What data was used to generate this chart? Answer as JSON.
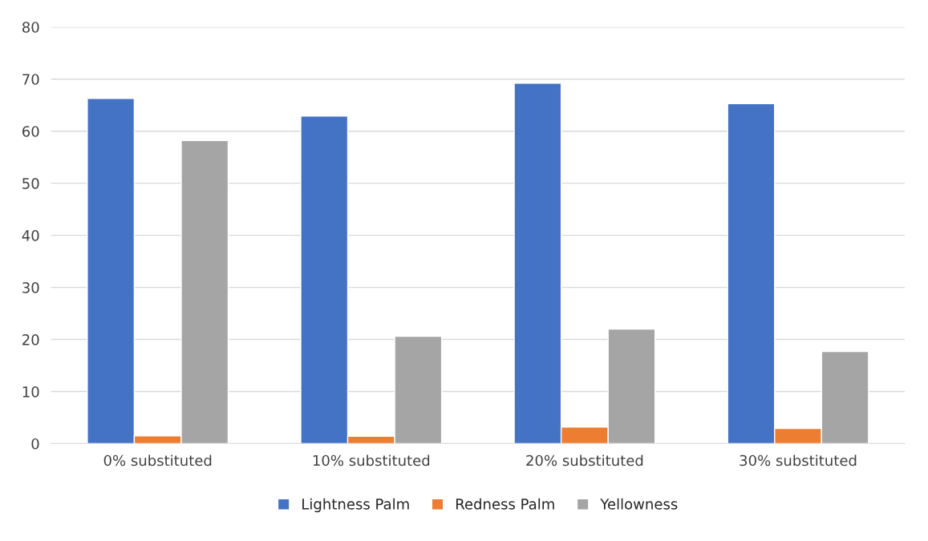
{
  "chart_data": {
    "type": "bar",
    "categories": [
      "0% substituted",
      "10% substituted",
      "20% substituted",
      "30% substituted"
    ],
    "series": [
      {
        "name": "Lightness Palm",
        "color": "#4472c4",
        "values": [
          66.3,
          62.9,
          69.2,
          65.3
        ]
      },
      {
        "name": "Redness Palm",
        "color": "#ed7d31",
        "values": [
          1.5,
          1.4,
          3.2,
          2.9
        ]
      },
      {
        "name": "Yellowness",
        "color": "#a5a5a5",
        "values": [
          58.2,
          20.6,
          22.0,
          17.7
        ]
      }
    ],
    "ylim": [
      0,
      80
    ],
    "yticks": [
      0,
      10,
      20,
      30,
      40,
      50,
      60,
      70,
      80
    ],
    "grid": "y",
    "legend": "bottom"
  }
}
